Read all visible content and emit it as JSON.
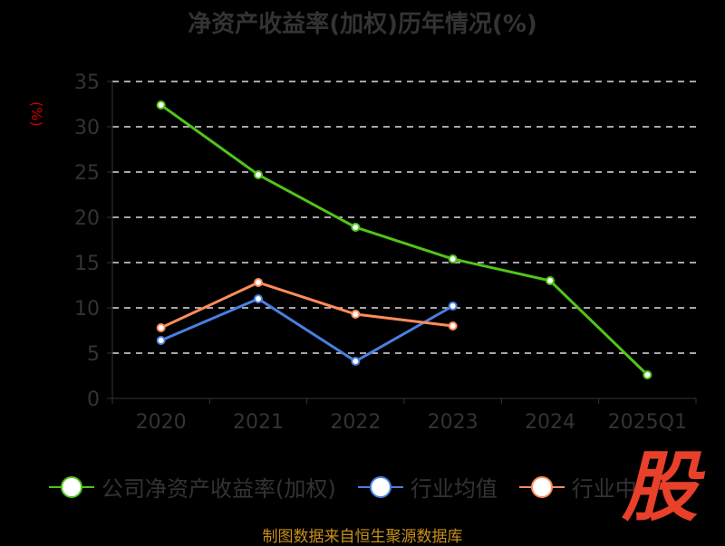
{
  "chart_data": {
    "type": "line",
    "title": "净资产收益率(加权)历年情况(%)",
    "ylabel": "(%)",
    "xlabel": "",
    "categories": [
      "2020",
      "2021",
      "2022",
      "2023",
      "2024",
      "2025Q1"
    ],
    "ylim": [
      0,
      35
    ],
    "yticks": [
      0,
      5,
      10,
      15,
      20,
      25,
      30,
      35
    ],
    "grid": true,
    "legend_position": "bottom",
    "series": [
      {
        "name": "公司净资产收益率(加权)",
        "color": "#52c41a",
        "values": [
          32.4,
          24.7,
          18.9,
          15.4,
          13.0,
          2.6
        ]
      },
      {
        "name": "行业均值",
        "color": "#4a7fe0",
        "values": [
          6.4,
          11.0,
          4.1,
          10.2,
          null,
          null
        ]
      },
      {
        "name": "行业中位数",
        "color": "#ff8c5a",
        "values": [
          7.8,
          12.8,
          9.3,
          8.0,
          null,
          null
        ]
      }
    ]
  },
  "legend_visible": [
    "公司净资产收益率(加权)",
    "行业均值",
    "行业中"
  ],
  "source": "制图数据来自恒生聚源数据库",
  "logo_text": "股"
}
